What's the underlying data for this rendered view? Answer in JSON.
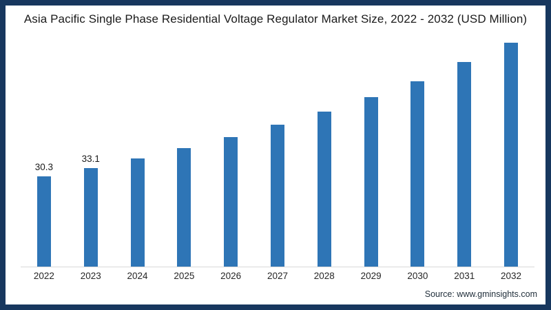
{
  "header": {
    "title": "Asia Pacific Single Phase Residential Voltage Regulator Market Size, 2022 - 2032 (USD Million)"
  },
  "footer": {
    "source_text": "Source: www.gminsights.com"
  },
  "colors": {
    "bar": "#2e75b6",
    "frame_border": "#17375e",
    "axis_line": "#d9d9d9",
    "title_text": "#1a1a1a",
    "data_label_text": "#1a1a1a",
    "tick_text": "#262626"
  },
  "chart_data": {
    "type": "bar",
    "title": "Asia Pacific Single Phase Residential Voltage Regulator Market Size, 2022 - 2032 (USD Million)",
    "xlabel": "",
    "ylabel": "",
    "unit": "USD Million",
    "categories": [
      "2022",
      "2023",
      "2024",
      "2025",
      "2026",
      "2027",
      "2028",
      "2029",
      "2030",
      "2031",
      "2032"
    ],
    "values": [
      30.3,
      33.1,
      36.3,
      39.7,
      43.5,
      47.6,
      52.1,
      56.9,
      62.3,
      68.7,
      75.2
    ],
    "data_labels": {
      "2022": "30.3",
      "2023": "33.1"
    },
    "ylim": [
      0,
      80
    ],
    "grid": false,
    "legend": false,
    "y_axis_shown": false,
    "source": "Source: www.gminsights.com"
  }
}
